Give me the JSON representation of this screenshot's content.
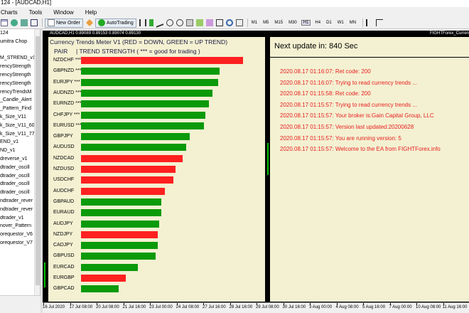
{
  "window": {
    "title": "124 - [AUDCAD,H1]"
  },
  "menu": {
    "items": [
      "Charts",
      "Tools",
      "Window",
      "Help"
    ]
  },
  "toolbar": {
    "new_order": "New Order",
    "autotrading": "AutoTrading",
    "timeframes": [
      "M1",
      "M5",
      "M15",
      "M30",
      "H1",
      "H4",
      "D1",
      "W1",
      "MN"
    ],
    "active_timeframe": "H1"
  },
  "navigator": {
    "items": [
      "124",
      "umitra Chop",
      "",
      "M_STREND_v1",
      "rencyStrength",
      "rencyStrength",
      "rencyStrength",
      "rencyTrendsM",
      "_Candle_Alert",
      "_Pattern_Find",
      "k_Size_V11",
      "k_Size_V11_60",
      "k_Size_V11_77",
      "END_v1",
      "ND_v1",
      "dreverse_v1",
      "dtrader_oscill",
      "dtrader_oscill",
      "dtrader_oscill",
      "dtrader_oscill",
      "ndtrader_rever",
      "ndtrader_rever",
      "dtrader_v1",
      "nover_Pattern",
      "orequestor_V6",
      "orequestor_V7",
      "",
      ""
    ]
  },
  "chart": {
    "header_left": "AUDCAD,H1  0.89089 0.89153 0.89074 0.89130",
    "header_right": "FIGHTForex_Curren"
  },
  "meter": {
    "title": "Currency Trends Meter V1 (RED = DOWN, GREEN = UP TREND)",
    "header_pair": "PAIR",
    "header_strength": "|  TREND STRENGTH ( *** = good for trading )",
    "colors": {
      "up": "#0a9a0a",
      "down": "#ff2020"
    },
    "rows": [
      {
        "pair": "NZDCHF ***",
        "strength": 0.91,
        "dir": "down"
      },
      {
        "pair": "GBPNZD ***",
        "strength": 0.78,
        "dir": "up"
      },
      {
        "pair": "EURJPY ***",
        "strength": 0.77,
        "dir": "up"
      },
      {
        "pair": "AUDNZD ***",
        "strength": 0.74,
        "dir": "up"
      },
      {
        "pair": "EURNZD ***",
        "strength": 0.72,
        "dir": "up"
      },
      {
        "pair": "CHFJPY ***",
        "strength": 0.7,
        "dir": "up"
      },
      {
        "pair": "EURUSD ***",
        "strength": 0.69,
        "dir": "up"
      },
      {
        "pair": "GBPJPY",
        "strength": 0.61,
        "dir": "up"
      },
      {
        "pair": "AUDUSD",
        "strength": 0.59,
        "dir": "up"
      },
      {
        "pair": "NZDCAD",
        "strength": 0.57,
        "dir": "down"
      },
      {
        "pair": "NZDUSD",
        "strength": 0.53,
        "dir": "down"
      },
      {
        "pair": "USDCHF",
        "strength": 0.52,
        "dir": "down"
      },
      {
        "pair": "AUDCHF",
        "strength": 0.47,
        "dir": "down"
      },
      {
        "pair": "GBPAUD",
        "strength": 0.45,
        "dir": "up"
      },
      {
        "pair": "EURAUD",
        "strength": 0.45,
        "dir": "up"
      },
      {
        "pair": "AUDJPY",
        "strength": 0.44,
        "dir": "up"
      },
      {
        "pair": "NZDJPY",
        "strength": 0.43,
        "dir": "down"
      },
      {
        "pair": "CADJPY",
        "strength": 0.43,
        "dir": "up"
      },
      {
        "pair": "GBPUSD",
        "strength": 0.42,
        "dir": "up"
      },
      {
        "pair": "EURCAD",
        "strength": 0.32,
        "dir": "up"
      },
      {
        "pair": "EURGBP",
        "strength": 0.25,
        "dir": "down"
      },
      {
        "pair": "GBPCAD",
        "strength": 0.21,
        "dir": "up"
      }
    ]
  },
  "status_panel": {
    "next_update": "Next update in: 840 Sec",
    "log": [
      "2020.08.17 01:16:07: Ret code: 200",
      "2020.08.17 01:16:07: Trying to read currency trends ...",
      "2020.08.17 01:15:58: Ret code: 200",
      "2020.08.17 01:15:57: Trying to read currency trends ...",
      "2020.08.17 01:15:57: Your broker is:Gain Capital Group, LLC",
      "2020.08.17 01:15:57: Version last updated:20200628",
      "2020.08.17 01:15:57: You are running version: 5",
      "2020.08.17 01:15:57: Welcome to the EA from FIGHTForex.info"
    ]
  },
  "xaxis": {
    "labels": [
      "16 Jul 2020",
      "17 Jul 08:00",
      "20 Jul 08:00",
      "21 Jul 16:00",
      "23 Jul 00:00",
      "24 Jul 08:00",
      "27 Jul 16:00",
      "28 Jul 16:00",
      "29 Jul 08:00",
      "30 Jul 16:00",
      "3 Aug 00:00",
      "4 Aug 08:00",
      "5 Aug 16:00",
      "7 Aug 00:00",
      "10 Aug 08:00",
      "11 Aug 16:00"
    ]
  }
}
